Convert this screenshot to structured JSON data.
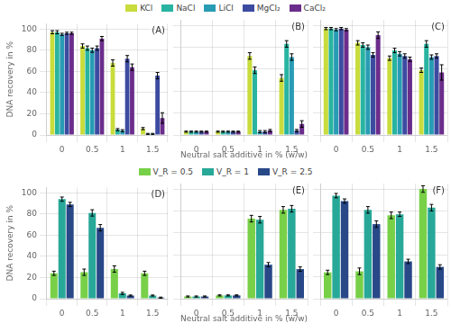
{
  "chart_data": [
    {
      "type": "bar",
      "annotation": "(A)",
      "categories": [
        "0",
        "0.5",
        "1",
        "1.5"
      ],
      "series": [
        {
          "name": "KCl",
          "color": "#c8dc3c",
          "values": [
            97,
            84,
            68,
            6
          ],
          "errors": [
            1.5,
            2,
            3,
            1
          ]
        },
        {
          "name": "NaCl",
          "color": "#28b4a0",
          "values": [
            97,
            82,
            5,
            1
          ],
          "errors": [
            1.5,
            2,
            1,
            0.5
          ]
        },
        {
          "name": "LiCl",
          "color": "#289cb4",
          "values": [
            95,
            80,
            4,
            1
          ],
          "errors": [
            1,
            2,
            1,
            0.5
          ]
        },
        {
          "name": "MgCl₂",
          "color": "#3c4ba0",
          "values": [
            96,
            82,
            72,
            56
          ],
          "errors": [
            1,
            2,
            3,
            3
          ]
        },
        {
          "name": "CaCl₂",
          "color": "#6b2d8b",
          "values": [
            96,
            91,
            64,
            16
          ],
          "errors": [
            1,
            2,
            3,
            5
          ]
        }
      ],
      "y_label": "DNA recovery in %",
      "ylim": [
        0,
        105
      ],
      "yticks": [
        0,
        20,
        40,
        60,
        80,
        100
      ],
      "grid": true,
      "legend": "top"
    },
    {
      "type": "bar",
      "annotation": "(B)",
      "categories": [
        "0",
        "0.5",
        "1",
        "1.5"
      ],
      "series": [
        {
          "name": "KCl",
          "color": "#c8dc3c",
          "values": [
            3,
            3,
            72,
            52
          ],
          "errors": [
            0.5,
            0.5,
            3,
            3
          ]
        },
        {
          "name": "NaCl",
          "color": "#28b4a0",
          "values": [
            3,
            3,
            59,
            83
          ],
          "errors": [
            0.5,
            0.5,
            3,
            3
          ]
        },
        {
          "name": "LiCl",
          "color": "#289cb4",
          "values": [
            3,
            3,
            3,
            71
          ],
          "errors": [
            0.5,
            0.5,
            1,
            3
          ]
        },
        {
          "name": "MgCl₂",
          "color": "#3c4ba0",
          "values": [
            3,
            3,
            3,
            4
          ],
          "errors": [
            0.5,
            0.5,
            1,
            1
          ]
        },
        {
          "name": "CaCl₂",
          "color": "#6b2d8b",
          "values": [
            3,
            3,
            4,
            10
          ],
          "errors": [
            0.5,
            0.5,
            1,
            3
          ]
        }
      ],
      "x_label": "Neutral salt additive in % (w/w)",
      "ylim": [
        0,
        105
      ],
      "yticks": [
        0,
        20,
        40,
        60,
        80,
        100
      ],
      "grid": true,
      "tick_labels": "x"
    },
    {
      "type": "bar",
      "annotation": "(C)",
      "categories": [
        "0",
        "0.5",
        "1",
        "1.5"
      ],
      "series": [
        {
          "name": "KCl",
          "color": "#c8dc3c",
          "values": [
            97,
            84,
            70,
            59
          ],
          "errors": [
            1,
            2,
            2,
            2
          ]
        },
        {
          "name": "NaCl",
          "color": "#28b4a0",
          "values": [
            97,
            82,
            77,
            83
          ],
          "errors": [
            1,
            2,
            2,
            3
          ]
        },
        {
          "name": "LiCl",
          "color": "#289cb4",
          "values": [
            96,
            80,
            74,
            71
          ],
          "errors": [
            1,
            2,
            2,
            2
          ]
        },
        {
          "name": "MgCl₂",
          "color": "#3c4ba0",
          "values": [
            97,
            73,
            72,
            72
          ],
          "errors": [
            1,
            2,
            2,
            2
          ]
        },
        {
          "name": "CaCl₂",
          "color": "#6b2d8b",
          "values": [
            96,
            91,
            69,
            57
          ],
          "errors": [
            1,
            3,
            2,
            7
          ]
        }
      ],
      "ylim": [
        0,
        105
      ],
      "yticks": [
        0,
        20,
        40,
        60,
        80,
        100
      ],
      "grid": true,
      "tick_labels": "x"
    },
    {
      "type": "bar",
      "annotation": "(D)",
      "categories": [
        "0",
        "0.5",
        "1",
        "1.5"
      ],
      "series": [
        {
          "name": "V_R = 0.5",
          "color": "#78d048",
          "values": [
            24,
            25,
            28,
            24
          ],
          "errors": [
            2,
            3,
            3,
            2
          ]
        },
        {
          "name": "V_R = 1",
          "color": "#28a898",
          "values": [
            94,
            81,
            5,
            3
          ],
          "errors": [
            2,
            3,
            1,
            0.5
          ]
        },
        {
          "name": "V_R = 2.5",
          "color": "#284888",
          "values": [
            89,
            67,
            3,
            1
          ],
          "errors": [
            2,
            3,
            0.5,
            0.5
          ]
        }
      ],
      "y_label": "DNA recovery in %",
      "ylim": [
        0,
        105
      ],
      "yticks": [
        0,
        20,
        40,
        60,
        80,
        100
      ],
      "grid": true,
      "legend": "top"
    },
    {
      "type": "bar",
      "annotation": "(E)",
      "categories": [
        "0",
        "0.5",
        "1",
        "1.5"
      ],
      "series": [
        {
          "name": "V_R = 0.5",
          "color": "#78d048",
          "values": [
            2,
            3,
            73,
            81
          ],
          "errors": [
            0.5,
            0.5,
            3,
            3
          ]
        },
        {
          "name": "V_R = 1",
          "color": "#28a898",
          "values": [
            2,
            3,
            72,
            82
          ],
          "errors": [
            0.5,
            0.5,
            3,
            3
          ]
        },
        {
          "name": "V_R = 2.5",
          "color": "#284888",
          "values": [
            2,
            3,
            31,
            27
          ],
          "errors": [
            0.5,
            0.5,
            2,
            2
          ]
        }
      ],
      "x_label": "Neutral salt additive in % (w/w)",
      "ylim": [
        0,
        105
      ],
      "yticks": [
        0,
        20,
        40,
        60,
        80,
        100
      ],
      "grid": true,
      "tick_labels": "x"
    },
    {
      "type": "bar",
      "annotation": "(F)",
      "categories": [
        "0",
        "0.5",
        "1",
        "1.5"
      ],
      "series": [
        {
          "name": "V_R = 0.5",
          "color": "#78d048",
          "values": [
            24,
            25,
            76,
            100
          ],
          "errors": [
            2,
            3,
            3,
            3
          ]
        },
        {
          "name": "V_R = 1",
          "color": "#28a898",
          "values": [
            94,
            81,
            77,
            83
          ],
          "errors": [
            2,
            3,
            2,
            3
          ]
        },
        {
          "name": "V_R = 2.5",
          "color": "#284888",
          "values": [
            89,
            68,
            34,
            29
          ],
          "errors": [
            2,
            3,
            2,
            2
          ]
        }
      ],
      "ylim": [
        0,
        105
      ],
      "yticks": [
        0,
        20,
        40,
        60,
        80,
        100
      ],
      "grid": true,
      "tick_labels": "x"
    }
  ]
}
